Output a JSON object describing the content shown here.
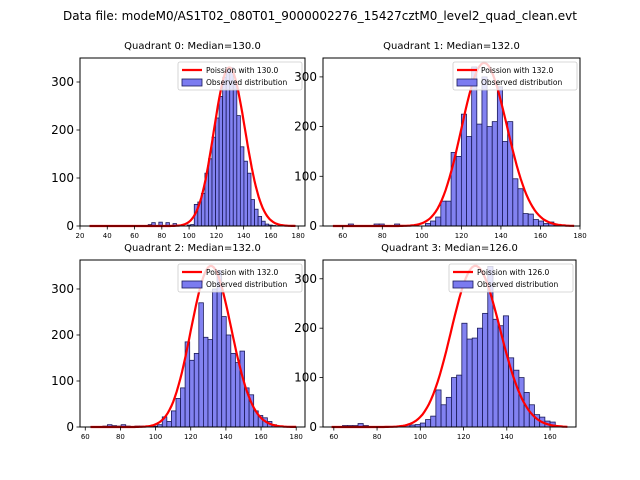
{
  "suptitle": "Data file: modeM0/AS1T02_080T01_9000002276_15427cztM0_level2_quad_clean.evt",
  "colors": {
    "hist_fill": "#7b7bf0",
    "hist_edge": "#1a1a5a",
    "poisson_line": "#ff0000"
  },
  "chart_data": [
    {
      "type": "bar",
      "title": "Quadrant 0: Median=130.0",
      "xlim": [
        20,
        185
      ],
      "ylim": [
        0,
        350
      ],
      "xticks": [
        20,
        40,
        60,
        80,
        100,
        120,
        140,
        160,
        180
      ],
      "yticks": [
        0,
        100,
        200,
        300
      ],
      "legend": [
        "Poission with 130.0",
        "Observed distribution"
      ],
      "legend_position": "top-right",
      "poisson_mean": 130.0,
      "poisson_scale": 330,
      "poisson_x_range": [
        27,
        178
      ],
      "bins_start": 70,
      "bin_width": 2.6,
      "values": [
        3,
        7,
        0,
        8,
        0,
        7,
        0,
        5,
        2,
        0,
        0,
        2,
        3,
        45,
        50,
        68,
        110,
        140,
        185,
        225,
        270,
        310,
        330,
        330,
        300,
        230,
        165,
        135,
        110,
        55,
        35,
        20,
        10,
        4,
        2,
        1
      ]
    },
    {
      "type": "bar",
      "title": "Quadrant 1: Median=132.0",
      "xlim": [
        50,
        180
      ],
      "ylim": [
        0,
        338
      ],
      "xticks": [
        60,
        80,
        100,
        120,
        140,
        160,
        180
      ],
      "yticks": [
        0,
        100,
        200,
        300
      ],
      "legend": [
        "Poission with 132.0",
        "Observed distribution"
      ],
      "legend_position": "top-right",
      "poisson_mean": 132.0,
      "poisson_scale": 328,
      "poisson_x_range": [
        55,
        177
      ],
      "bins_start": 55,
      "bin_width": 2.6,
      "values": [
        0,
        0,
        0,
        4,
        0,
        0,
        0,
        0,
        4,
        4,
        0,
        0,
        4,
        0,
        0,
        0,
        0,
        0,
        5,
        10,
        18,
        50,
        50,
        148,
        140,
        225,
        180,
        320,
        205,
        300,
        200,
        210,
        280,
        170,
        210,
        95,
        75,
        25,
        24,
        13,
        10,
        5,
        8,
        2,
        1,
        0,
        0
      ]
    },
    {
      "type": "bar",
      "title": "Quadrant 2: Median=132.0",
      "xlim": [
        57,
        185
      ],
      "ylim": [
        0,
        363
      ],
      "xticks": [
        60,
        80,
        100,
        120,
        140,
        160,
        180
      ],
      "yticks": [
        0,
        100,
        200,
        300
      ],
      "legend": [
        "Poission with 132.0",
        "Observed distribution"
      ],
      "legend_position": "top-right",
      "poisson_mean": 132.0,
      "poisson_scale": 350,
      "poisson_x_range": [
        63,
        180
      ],
      "bins_start": 70,
      "bin_width": 2.6,
      "values": [
        2,
        5,
        3,
        2,
        5,
        2,
        0,
        2,
        2,
        0,
        2,
        2,
        5,
        22,
        12,
        35,
        62,
        85,
        185,
        145,
        160,
        270,
        195,
        190,
        300,
        340,
        240,
        200,
        160,
        140,
        165,
        85,
        70,
        35,
        25,
        20,
        12,
        5,
        2,
        0
      ]
    },
    {
      "type": "bar",
      "title": "Quadrant 3: Median=126.0",
      "xlim": [
        55,
        172
      ],
      "ylim": [
        0,
        338
      ],
      "xticks": [
        60,
        80,
        100,
        120,
        140,
        160
      ],
      "yticks": [
        0,
        100,
        200,
        300
      ],
      "legend": [
        "Poission with 126.0",
        "Observed distribution"
      ],
      "legend_position": "top-right",
      "poisson_mean": 126.0,
      "poisson_scale": 326,
      "poisson_x_range": [
        59,
        168
      ],
      "bins_start": 64,
      "bin_width": 2.4,
      "values": [
        3,
        3,
        3,
        7,
        3,
        0,
        0,
        0,
        0,
        0,
        0,
        0,
        4,
        4,
        5,
        8,
        15,
        22,
        75,
        45,
        60,
        100,
        105,
        210,
        178,
        180,
        200,
        230,
        325,
        218,
        205,
        225,
        140,
        115,
        100,
        70,
        45,
        25,
        20,
        12,
        10,
        0
      ]
    }
  ]
}
